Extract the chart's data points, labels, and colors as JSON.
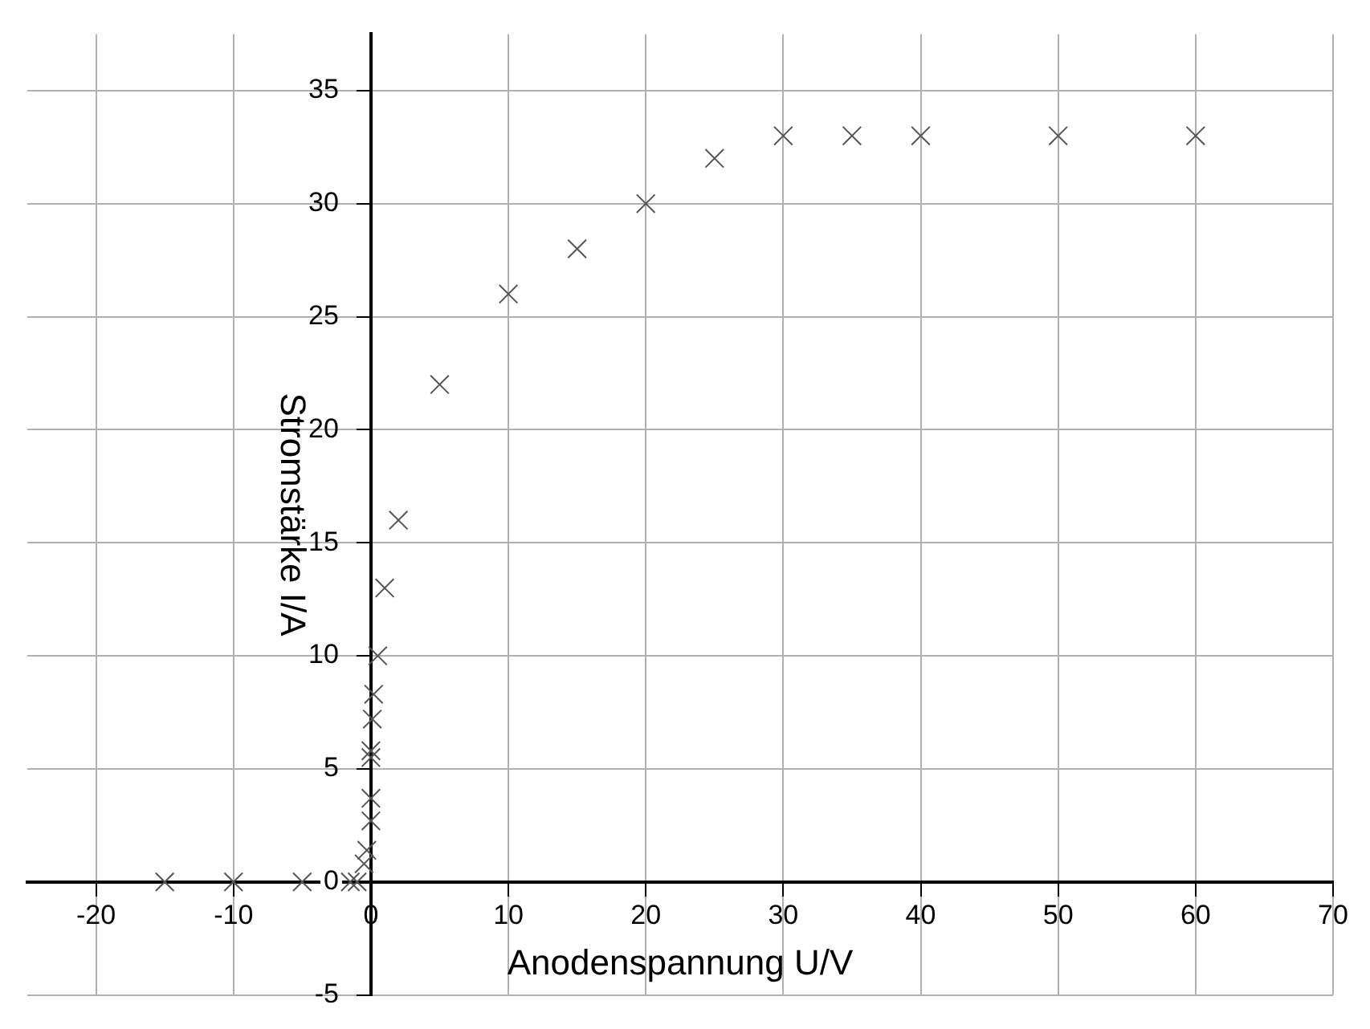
{
  "chart_data": {
    "type": "scatter",
    "xlabel": "Anodenspannung U/V",
    "ylabel": "Stromstärke I/A",
    "x": [
      -15,
      -10,
      -5,
      -1.5,
      -1,
      -0.5,
      -0.3,
      0,
      0,
      0,
      0,
      0.1,
      0.2,
      0.5,
      1,
      2,
      5,
      10,
      15,
      20,
      25,
      30,
      35,
      40,
      50,
      60
    ],
    "series": [
      {
        "color": "#555555",
        "values": [
          0,
          0,
          0,
          0,
          0,
          0.8,
          1.4,
          2.7,
          3.7,
          5.5,
          5.8,
          7.2,
          8.3,
          10,
          13,
          16,
          22,
          26,
          28,
          30,
          32,
          33,
          33,
          33,
          33,
          33
        ]
      }
    ],
    "xlim": [
      -25,
      70
    ],
    "xticks": [
      -20,
      -10,
      0,
      10,
      20,
      30,
      40,
      50,
      60,
      70
    ],
    "ylim": [
      -5,
      37.5
    ],
    "yticks": [
      -5,
      0,
      5,
      10,
      15,
      20,
      25,
      30,
      35
    ],
    "grid": true,
    "legend": false,
    "marker": "cross"
  }
}
